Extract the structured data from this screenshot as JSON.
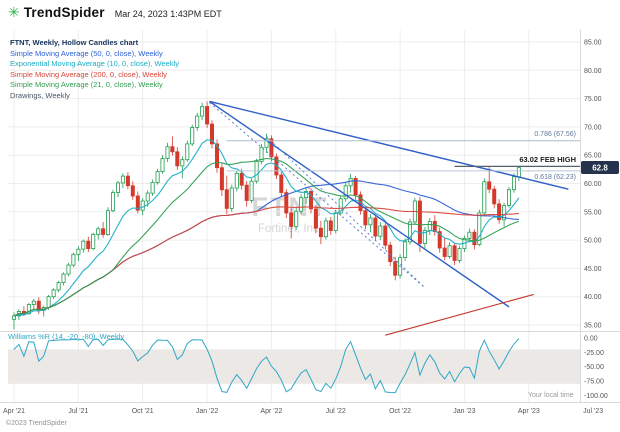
{
  "header": {
    "brand": "TrendSpider",
    "logo_icon": "trendspider-asterisk-logo",
    "datetime": "Mar 24, 2023 1:43PM EDT"
  },
  "legend": {
    "title": "FTNT, Weekly, Hollow Candles chart",
    "items": [
      {
        "label": "Simple Moving Average (50, 0, close), Weekly",
        "color": "#2c5fd8"
      },
      {
        "label": "Exponential Moving Average (10, 0, close), Weekly",
        "color": "#17aec6"
      },
      {
        "label": "Simple Moving Average (200, 0, close), Weekly",
        "color": "#d8453a"
      },
      {
        "label": "Simple Moving Average (21, 0, close), Weekly",
        "color": "#2e9e4f"
      },
      {
        "label": "Drawings, Weekly",
        "color": "#4a5568"
      }
    ]
  },
  "watermark": {
    "symbol": "FTNT",
    "company": "Fortinet, Inc."
  },
  "annotations": {
    "fib_786": "0.786 (67.56)",
    "feb_high": "63.02 FEB HIGH",
    "fib_618": "0.618 (62.23)",
    "price_badge": "62.8",
    "badge_color": "#24324b"
  },
  "indicator": {
    "label": "Williams %R (14, -20, -80), Weekly",
    "color": "#2fa7c6",
    "band_fill": "#ece8e5",
    "axis": [
      "0.00",
      "-25.00",
      "-50.00",
      "-75.00",
      "-100.00"
    ],
    "axis_values": [
      0,
      -25,
      -50,
      -75,
      -100
    ]
  },
  "price_axis": {
    "labels": [
      "85.00",
      "80.00",
      "75.00",
      "70.00",
      "65.00",
      "60.00",
      "55.00",
      "50.00",
      "45.00",
      "40.00",
      "35.00"
    ],
    "values": [
      85,
      80,
      75,
      70,
      65,
      60,
      55,
      50,
      45,
      40,
      35
    ]
  },
  "x_axis": {
    "labels": [
      "Apr '21",
      "Jul '21",
      "Oct '21",
      "Jan '22",
      "Apr '22",
      "Jul '22",
      "Oct '22",
      "Jan '23",
      "Apr '23",
      "Jul '23"
    ],
    "weeks": [
      0,
      13,
      26,
      39,
      52,
      65,
      78,
      91,
      104,
      117
    ]
  },
  "footer": {
    "copyright": "©2023 TrendSpider",
    "local_time": "Your local time"
  },
  "chart_data": {
    "type": "candlestick",
    "symbol": "FTNT",
    "timeframe": "Weekly",
    "style": "Hollow Candles",
    "title": "FTNT, Weekly, Hollow Candles chart",
    "x_range": [
      "Apr '21",
      "Jul '23"
    ],
    "price_range": [
      35,
      85
    ],
    "last_price": 62.8,
    "up_color": "#1f9d4f",
    "down_color": "#d4392b",
    "candles": [
      [
        36.0,
        37.2,
        34.2,
        36.6
      ],
      [
        36.6,
        37.8,
        35.9,
        37.4
      ],
      [
        37.4,
        38.3,
        36.6,
        37.0
      ],
      [
        37.0,
        38.9,
        36.8,
        38.6
      ],
      [
        38.6,
        39.6,
        37.8,
        39.2
      ],
      [
        39.2,
        39.9,
        36.9,
        37.6
      ],
      [
        37.6,
        38.4,
        36.5,
        38.1
      ],
      [
        38.1,
        40.3,
        37.7,
        40.0
      ],
      [
        40.0,
        41.5,
        39.6,
        41.2
      ],
      [
        41.2,
        42.8,
        40.8,
        42.5
      ],
      [
        42.5,
        44.3,
        42.0,
        44.0
      ],
      [
        44.0,
        46.0,
        43.6,
        45.6
      ],
      [
        45.6,
        47.8,
        45.2,
        47.5
      ],
      [
        47.5,
        48.9,
        46.3,
        48.4
      ],
      [
        48.4,
        50.1,
        47.8,
        49.8
      ],
      [
        49.8,
        50.6,
        47.9,
        48.5
      ],
      [
        48.5,
        51.3,
        48.2,
        51.0
      ],
      [
        51.0,
        52.4,
        50.1,
        52.0
      ],
      [
        52.0,
        53.2,
        50.4,
        51.0
      ],
      [
        51.0,
        55.8,
        50.8,
        55.2
      ],
      [
        55.2,
        58.9,
        54.9,
        58.4
      ],
      [
        58.4,
        60.5,
        57.6,
        60.1
      ],
      [
        60.1,
        61.8,
        59.2,
        61.3
      ],
      [
        61.3,
        62.0,
        59.0,
        59.6
      ],
      [
        59.6,
        60.4,
        57.1,
        57.8
      ],
      [
        57.8,
        58.6,
        54.7,
        55.3
      ],
      [
        55.3,
        57.4,
        54.4,
        56.9
      ],
      [
        56.9,
        58.8,
        55.9,
        58.3
      ],
      [
        58.3,
        60.7,
        57.8,
        60.2
      ],
      [
        60.2,
        62.6,
        59.8,
        62.1
      ],
      [
        62.1,
        65.0,
        61.7,
        64.4
      ],
      [
        64.4,
        67.2,
        63.8,
        66.5
      ],
      [
        66.5,
        68.3,
        64.9,
        65.6
      ],
      [
        65.6,
        66.4,
        62.4,
        63.1
      ],
      [
        63.1,
        64.8,
        60.9,
        64.2
      ],
      [
        64.2,
        67.6,
        63.8,
        67.0
      ],
      [
        67.0,
        70.4,
        66.6,
        69.9
      ],
      [
        69.9,
        72.5,
        69.3,
        71.9
      ],
      [
        71.9,
        74.3,
        71.2,
        73.6
      ],
      [
        73.6,
        74.5,
        69.8,
        70.5
      ],
      [
        70.5,
        71.2,
        66.2,
        67.0
      ],
      [
        67.0,
        67.8,
        61.9,
        62.8
      ],
      [
        62.8,
        63.5,
        57.8,
        58.9
      ],
      [
        58.9,
        61.4,
        54.6,
        55.6
      ],
      [
        55.6,
        59.8,
        55.0,
        59.2
      ],
      [
        59.2,
        62.3,
        58.6,
        61.8
      ],
      [
        61.8,
        62.6,
        58.9,
        59.7
      ],
      [
        59.7,
        60.4,
        55.9,
        57.0
      ],
      [
        57.0,
        60.9,
        56.5,
        60.4
      ],
      [
        60.4,
        64.4,
        60.0,
        63.9
      ],
      [
        63.9,
        67.0,
        63.4,
        66.4
      ],
      [
        66.4,
        68.8,
        65.4,
        67.9
      ],
      [
        67.9,
        68.5,
        63.9,
        64.7
      ],
      [
        64.7,
        65.3,
        60.8,
        61.5
      ],
      [
        61.5,
        62.2,
        57.6,
        58.4
      ],
      [
        58.4,
        59.0,
        53.9,
        54.8
      ],
      [
        54.8,
        55.6,
        50.3,
        52.4
      ],
      [
        52.4,
        55.7,
        51.8,
        55.1
      ],
      [
        55.1,
        58.1,
        54.6,
        57.5
      ],
      [
        57.5,
        59.3,
        56.4,
        58.6
      ],
      [
        58.6,
        59.2,
        54.7,
        55.5
      ],
      [
        55.5,
        56.2,
        51.2,
        52.1
      ],
      [
        52.1,
        53.4,
        49.3,
        50.6
      ],
      [
        50.6,
        54.0,
        50.1,
        53.4
      ],
      [
        53.4,
        54.1,
        50.9,
        51.7
      ],
      [
        51.7,
        55.3,
        51.2,
        54.8
      ],
      [
        54.8,
        57.9,
        54.3,
        57.3
      ],
      [
        57.3,
        60.2,
        56.8,
        59.6
      ],
      [
        59.6,
        61.7,
        58.4,
        60.9
      ],
      [
        60.9,
        61.3,
        57.2,
        58.0
      ],
      [
        58.0,
        58.6,
        54.5,
        55.2
      ],
      [
        55.2,
        55.9,
        51.9,
        52.7
      ],
      [
        52.7,
        54.6,
        51.4,
        53.9
      ],
      [
        53.9,
        54.4,
        49.9,
        50.7
      ],
      [
        50.7,
        53.2,
        50.0,
        52.5
      ],
      [
        52.5,
        53.0,
        48.3,
        49.1
      ],
      [
        49.1,
        49.7,
        45.4,
        46.2
      ],
      [
        46.2,
        47.0,
        42.9,
        43.8
      ],
      [
        43.8,
        47.5,
        43.2,
        46.9
      ],
      [
        46.9,
        50.3,
        46.3,
        49.7
      ],
      [
        49.7,
        53.8,
        49.2,
        53.2
      ],
      [
        53.2,
        57.5,
        52.7,
        56.9
      ],
      [
        56.9,
        57.6,
        47.9,
        49.4
      ],
      [
        49.4,
        52.3,
        48.6,
        51.7
      ],
      [
        51.7,
        53.9,
        50.9,
        53.3
      ],
      [
        53.3,
        54.4,
        50.8,
        51.5
      ],
      [
        51.5,
        52.2,
        47.8,
        48.6
      ],
      [
        48.6,
        50.4,
        46.4,
        47.1
      ],
      [
        47.1,
        49.6,
        46.7,
        49.0
      ],
      [
        49.0,
        49.5,
        45.6,
        46.4
      ],
      [
        46.4,
        49.0,
        45.9,
        48.5
      ],
      [
        48.5,
        50.8,
        47.9,
        50.3
      ],
      [
        50.3,
        52.0,
        49.6,
        51.4
      ],
      [
        51.4,
        51.9,
        48.4,
        49.2
      ],
      [
        49.2,
        55.4,
        48.9,
        54.8
      ],
      [
        54.8,
        60.9,
        54.2,
        60.3
      ],
      [
        60.3,
        63.0,
        58.3,
        59.0
      ],
      [
        59.0,
        59.6,
        55.6,
        56.4
      ],
      [
        56.4,
        57.2,
        52.9,
        53.6
      ],
      [
        53.6,
        56.6,
        52.4,
        56.1
      ],
      [
        56.1,
        59.4,
        55.7,
        58.9
      ],
      [
        58.9,
        61.8,
        58.4,
        61.2
      ],
      [
        61.2,
        63.0,
        60.4,
        62.8
      ]
    ],
    "overlays": [
      {
        "name": "SMA50",
        "method": "sma",
        "window": 50,
        "color": "#2c5fd8"
      },
      {
        "name": "EMA10",
        "method": "ema",
        "window": 10,
        "color": "#17aec6"
      },
      {
        "name": "SMA200",
        "method": "sma",
        "window": 200,
        "color": "#d8453a"
      },
      {
        "name": "SMA21",
        "method": "sma",
        "window": 21,
        "color": "#2e9e4f"
      }
    ],
    "lower_indicator": {
      "name": "Williams %R",
      "period": 14,
      "levels": [
        -20,
        -80
      ],
      "range": [
        0,
        -100
      ]
    },
    "drawings": [
      {
        "name": "wedge-upper",
        "type": "trendline",
        "from_week": 39.5,
        "from_price": 74.5,
        "to_week": 112,
        "to_price": 59.0,
        "color": "#2e5fc8",
        "width": 1.4
      },
      {
        "name": "wedge-lower",
        "type": "trendline",
        "from_week": 39.5,
        "from_price": 74.5,
        "to_week": 100,
        "to_price": 38.2,
        "color": "#2e5fc8",
        "width": 1.4
      },
      {
        "name": "measure-1",
        "type": "trendline",
        "from_week": 39.5,
        "from_price": 74.3,
        "to_week": 83,
        "to_price": 41.6,
        "color": "#5b7fd0",
        "width": 1,
        "dash": "2,3"
      },
      {
        "name": "measure-2",
        "type": "trendline",
        "from_week": 51,
        "from_price": 68.3,
        "to_week": 83,
        "to_price": 41.6,
        "color": "#5b7fd0",
        "width": 1,
        "dash": "2,3"
      },
      {
        "name": "support-red",
        "type": "trendline",
        "from_week": 75,
        "from_price": 33.2,
        "to_week": 105,
        "to_price": 40.4,
        "color": "#c23b2e",
        "width": 1.1
      },
      {
        "name": "fib-0786",
        "type": "hline",
        "price": 67.56,
        "from_week": 43,
        "to_week": 117,
        "color": "#a9bdd2",
        "width": 1
      },
      {
        "name": "fib-0618",
        "type": "hline",
        "price": 62.23,
        "from_week": 43,
        "to_week": 117,
        "color": "#b6c6d8",
        "width": 1
      },
      {
        "name": "feb-high-line",
        "type": "hline",
        "price": 63.02,
        "from_week": 89,
        "to_week": 117,
        "color": "#55606e",
        "width": 1.2
      }
    ]
  }
}
